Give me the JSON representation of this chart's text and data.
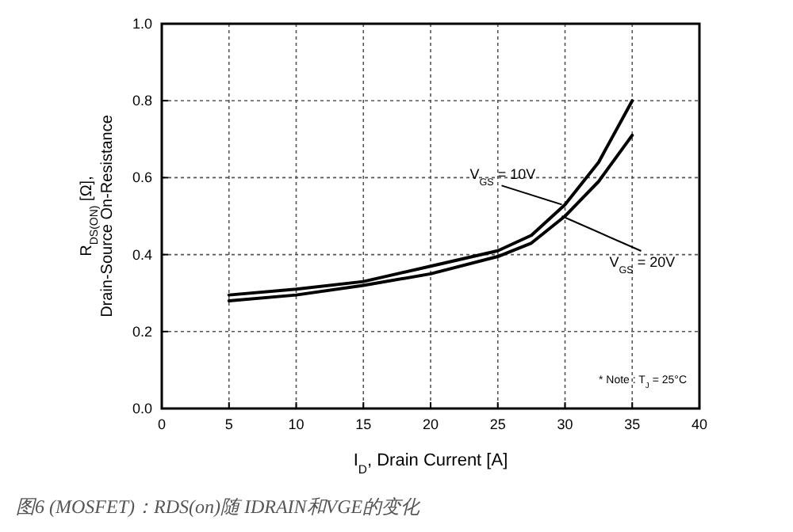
{
  "chart_data": {
    "type": "line",
    "x": [
      5,
      10,
      15,
      20,
      25,
      27.5,
      30,
      32.5,
      35
    ],
    "series": [
      {
        "name": "V$_{GS}$ = 10V",
        "color": "#000000",
        "values": [
          0.295,
          0.31,
          0.33,
          0.37,
          0.41,
          0.45,
          0.53,
          0.64,
          0.8
        ]
      },
      {
        "name": "V$_{GS}$ = 20V",
        "color": "#000000",
        "values": [
          0.28,
          0.295,
          0.32,
          0.35,
          0.395,
          0.43,
          0.5,
          0.59,
          0.71
        ]
      }
    ],
    "xlabel": "I$_{D}$, Drain Current [A]",
    "ylabel": "R$_{DS(ON)}$ [Ω],\nDrain-Source On-Resistance",
    "xlim": [
      0,
      40
    ],
    "xticks": [
      0,
      5,
      10,
      15,
      20,
      25,
      30,
      35,
      40
    ],
    "ylim": [
      0,
      1
    ],
    "yticks": [
      {
        "value": 0,
        "label": "0.0"
      },
      0.2,
      0.4,
      0.6,
      0.8,
      {
        "value": 1,
        "label": "1.0"
      }
    ],
    "grid": true,
    "marker": "none",
    "line_style": "solid",
    "annotations": [
      "* Note : T$_{J}$ = 25°C",
      "图6 (MOSFET)：RDS(on)随 IDRAIN和VGE的变化"
    ]
  }
}
